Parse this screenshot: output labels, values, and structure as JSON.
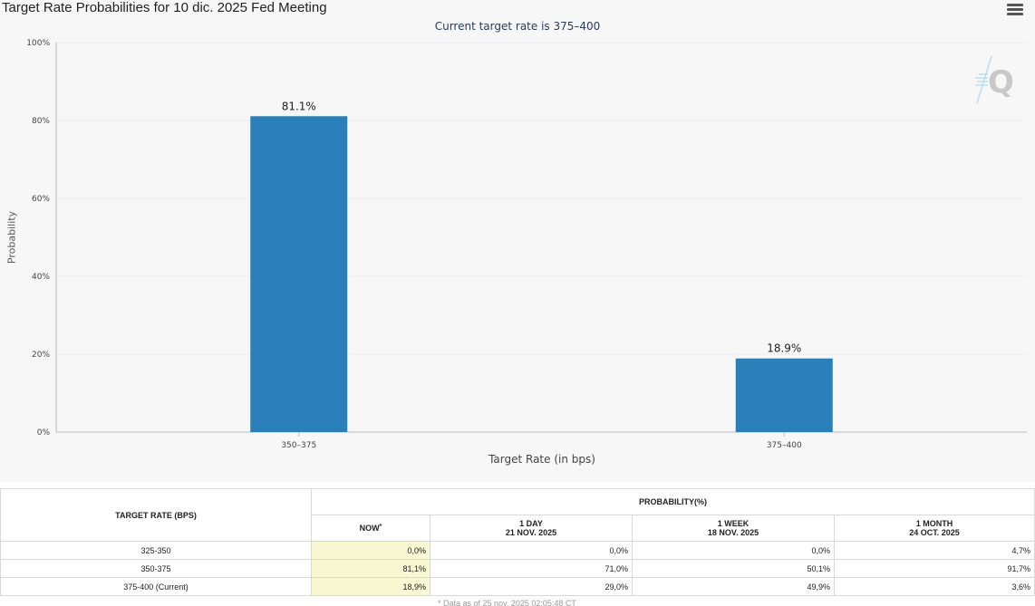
{
  "page_title": "Target Rate Probabilities for 10 dic. 2025 Fed Meeting",
  "menu_icon": "hamburger-menu-icon",
  "logo_icon": "cme-fedwatch-q-logo",
  "chart_data": {
    "type": "bar",
    "title": "",
    "subtitle": "Current target rate is 375–400",
    "xlabel": "Target Rate (in bps)",
    "ylabel": "Probability",
    "categories": [
      "350–375",
      "375–400"
    ],
    "values": [
      81.1,
      18.9
    ],
    "data_labels": [
      "81.1%",
      "18.9%"
    ],
    "ylim": [
      0,
      100
    ],
    "yticks": [
      "0%",
      "20%",
      "40%",
      "60%",
      "80%",
      "100%"
    ],
    "grid": true,
    "bar_color": "#2b7fb8"
  },
  "table": {
    "col_rate": "TARGET RATE (BPS)",
    "col_prob": "PROBABILITY(%)",
    "now_label": "NOW",
    "now_mark": "*",
    "periods": [
      {
        "label": "1 DAY",
        "date": "21 NOV. 2025"
      },
      {
        "label": "1 WEEK",
        "date": "18 NOV. 2025"
      },
      {
        "label": "1 MONTH",
        "date": "24 OCT. 2025"
      }
    ],
    "rows": [
      {
        "rate": "325-350",
        "now": "0,0%",
        "day": "0,0%",
        "week": "0,0%",
        "month": "4,7%"
      },
      {
        "rate": "350-375",
        "now": "81,1%",
        "day": "71,0%",
        "week": "50,1%",
        "month": "91,7%"
      },
      {
        "rate": "375-400 (Current)",
        "now": "18,9%",
        "day": "29,0%",
        "week": "49,9%",
        "month": "3,6%"
      }
    ],
    "footnote": "* Data as of 25 nov. 2025 02:05:48 CT"
  }
}
